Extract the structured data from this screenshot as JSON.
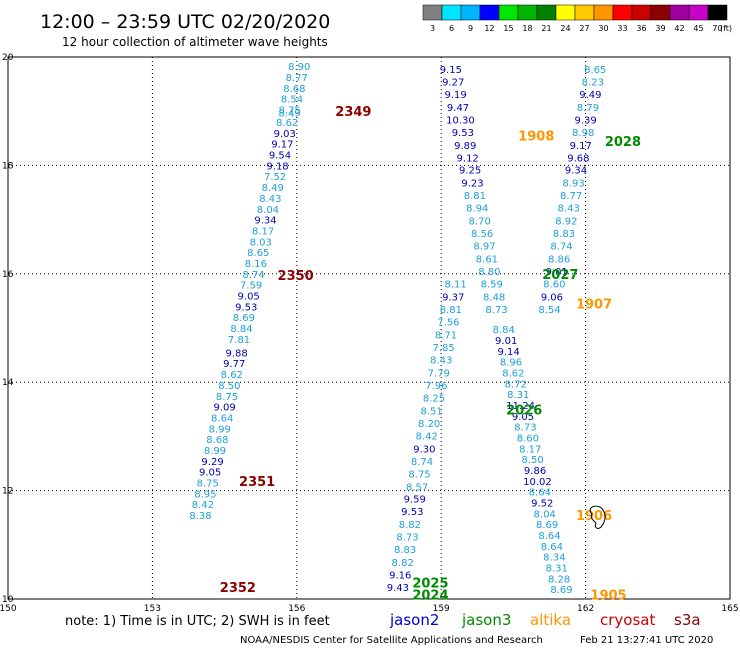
{
  "title": "12:00 – 23:59 UTC 02/20/2020",
  "subtitle": "12 hour collection of altimeter wave heights",
  "colorbar": {
    "unit": "(ft)",
    "labels": [
      "3",
      "6",
      "9",
      "12",
      "15",
      "18",
      "21",
      "24",
      "27",
      "30",
      "33",
      "36",
      "39",
      "42",
      "45",
      "70"
    ],
    "colors": [
      "#808080",
      "#00e5ff",
      "#00b4ff",
      "#0000ff",
      "#00e600",
      "#00b400",
      "#008200",
      "#ffff00",
      "#ffc800",
      "#ff9600",
      "#ff0000",
      "#c80000",
      "#8c0000",
      "#a000a0",
      "#c800c8",
      "#000000"
    ]
  },
  "footer": {
    "note": "note: 1) Time is in UTC; 2) SWH is in feet",
    "credit": "NOAA/NESDIS Center for Satellite Applications and Research",
    "timestamp": "Feb 21 13:27:41 UTC 2020"
  },
  "legend": [
    {
      "name": "jason2",
      "color": "#0000c8"
    },
    {
      "name": "jason3",
      "color": "#008c00"
    },
    {
      "name": "altika",
      "color": "#ff9600"
    },
    {
      "name": "cryosat",
      "color": "#c80000"
    },
    {
      "name": "s3a",
      "color": "#8c0000"
    }
  ],
  "chart_data": {
    "type": "scatter",
    "title": "12:00 – 23:59 UTC 02/20/2020",
    "subtitle": "12 hour collection of altimeter wave heights",
    "xlim": [
      150,
      165
    ],
    "ylim": [
      10,
      20
    ],
    "x_ticks": [
      "150",
      "153",
      "156",
      "159",
      "162",
      "165"
    ],
    "y_ticks": [
      "10",
      "12",
      "14",
      "16",
      "18",
      "20"
    ],
    "grid": true,
    "colors": {
      "light": "#1ea0dc",
      "dark": "#0000b4"
    },
    "points": [
      {
        "x": 156.05,
        "y": 19.83,
        "v": "8.90",
        "c": "light"
      },
      {
        "x": 156.0,
        "y": 19.63,
        "v": "8.77",
        "c": "light"
      },
      {
        "x": 155.95,
        "y": 19.43,
        "v": "8.68",
        "c": "light"
      },
      {
        "x": 155.9,
        "y": 19.23,
        "v": "8.54",
        "c": "light"
      },
      {
        "x": 155.85,
        "y": 19.03,
        "v": "8.75",
        "c": "light"
      },
      {
        "x": 155.85,
        "y": 18.98,
        "v": "8.49",
        "c": "light"
      },
      {
        "x": 155.8,
        "y": 18.8,
        "v": "8.62",
        "c": "light"
      },
      {
        "x": 155.75,
        "y": 18.6,
        "v": "9.03",
        "c": "dark"
      },
      {
        "x": 155.7,
        "y": 18.4,
        "v": "9.17",
        "c": "dark"
      },
      {
        "x": 155.65,
        "y": 18.2,
        "v": "9.54",
        "c": "dark"
      },
      {
        "x": 155.6,
        "y": 18.0,
        "v": "9.18",
        "c": "dark"
      },
      {
        "x": 155.55,
        "y": 17.8,
        "v": "7.52",
        "c": "light"
      },
      {
        "x": 155.5,
        "y": 17.6,
        "v": "8.49",
        "c": "light"
      },
      {
        "x": 155.45,
        "y": 17.4,
        "v": "8.43",
        "c": "light"
      },
      {
        "x": 155.4,
        "y": 17.2,
        "v": "8.04",
        "c": "light"
      },
      {
        "x": 155.35,
        "y": 17.0,
        "v": "9.34",
        "c": "dark"
      },
      {
        "x": 155.3,
        "y": 16.8,
        "v": "8.17",
        "c": "light"
      },
      {
        "x": 155.25,
        "y": 16.6,
        "v": "8.03",
        "c": "light"
      },
      {
        "x": 155.2,
        "y": 16.4,
        "v": "8.65",
        "c": "light"
      },
      {
        "x": 155.15,
        "y": 16.2,
        "v": "8.16",
        "c": "light"
      },
      {
        "x": 155.1,
        "y": 16.0,
        "v": "8.74",
        "c": "light"
      },
      {
        "x": 155.05,
        "y": 15.8,
        "v": "7.59",
        "c": "light"
      },
      {
        "x": 155.0,
        "y": 15.6,
        "v": "9.05",
        "c": "dark"
      },
      {
        "x": 154.95,
        "y": 15.4,
        "v": "9.53",
        "c": "dark"
      },
      {
        "x": 154.9,
        "y": 15.2,
        "v": "8.69",
        "c": "light"
      },
      {
        "x": 154.85,
        "y": 15.0,
        "v": "8.84",
        "c": "light"
      },
      {
        "x": 154.8,
        "y": 14.8,
        "v": "7.81",
        "c": "light"
      },
      {
        "x": 154.75,
        "y": 14.55,
        "v": "9.88",
        "c": "dark"
      },
      {
        "x": 154.7,
        "y": 14.35,
        "v": "9.77",
        "c": "dark"
      },
      {
        "x": 154.65,
        "y": 14.15,
        "v": "8.62",
        "c": "light"
      },
      {
        "x": 154.6,
        "y": 13.95,
        "v": "8.50",
        "c": "light"
      },
      {
        "x": 154.55,
        "y": 13.75,
        "v": "8.75",
        "c": "light"
      },
      {
        "x": 154.5,
        "y": 13.55,
        "v": "9.09",
        "c": "dark"
      },
      {
        "x": 154.45,
        "y": 13.35,
        "v": "8.64",
        "c": "light"
      },
      {
        "x": 154.4,
        "y": 13.15,
        "v": "8.99",
        "c": "light"
      },
      {
        "x": 154.35,
        "y": 12.95,
        "v": "8.68",
        "c": "light"
      },
      {
        "x": 154.3,
        "y": 12.75,
        "v": "8.99",
        "c": "light"
      },
      {
        "x": 154.25,
        "y": 12.55,
        "v": "9.29",
        "c": "dark"
      },
      {
        "x": 154.2,
        "y": 12.35,
        "v": "9.05",
        "c": "dark"
      },
      {
        "x": 154.15,
        "y": 12.15,
        "v": "8.75",
        "c": "light"
      },
      {
        "x": 154.1,
        "y": 11.95,
        "v": "8.95",
        "c": "light"
      },
      {
        "x": 154.05,
        "y": 11.75,
        "v": "8.42",
        "c": "light"
      },
      {
        "x": 154.0,
        "y": 11.55,
        "v": "8.38",
        "c": "light"
      },
      {
        "x": 159.2,
        "y": 19.78,
        "v": "9.15",
        "c": "dark"
      },
      {
        "x": 159.25,
        "y": 19.55,
        "v": "9.27",
        "c": "dark"
      },
      {
        "x": 159.3,
        "y": 19.32,
        "v": "9.19",
        "c": "dark"
      },
      {
        "x": 159.35,
        "y": 19.08,
        "v": "9.47",
        "c": "dark"
      },
      {
        "x": 159.4,
        "y": 18.85,
        "v": "10.30",
        "c": "dark"
      },
      {
        "x": 159.45,
        "y": 18.62,
        "v": "9.53",
        "c": "dark"
      },
      {
        "x": 159.5,
        "y": 18.38,
        "v": "9.89",
        "c": "dark"
      },
      {
        "x": 159.55,
        "y": 18.15,
        "v": "9.12",
        "c": "dark"
      },
      {
        "x": 159.6,
        "y": 17.92,
        "v": "9.25",
        "c": "dark"
      },
      {
        "x": 159.65,
        "y": 17.68,
        "v": "9.23",
        "c": "dark"
      },
      {
        "x": 159.7,
        "y": 17.45,
        "v": "8.81",
        "c": "light"
      },
      {
        "x": 159.75,
        "y": 17.22,
        "v": "8.94",
        "c": "light"
      },
      {
        "x": 159.8,
        "y": 16.98,
        "v": "8.70",
        "c": "light"
      },
      {
        "x": 159.85,
        "y": 16.75,
        "v": "8.56",
        "c": "light"
      },
      {
        "x": 159.9,
        "y": 16.52,
        "v": "8.97",
        "c": "light"
      },
      {
        "x": 159.95,
        "y": 16.28,
        "v": "8.61",
        "c": "light"
      },
      {
        "x": 160.0,
        "y": 16.05,
        "v": "8.80",
        "c": "light"
      },
      {
        "x": 160.05,
        "y": 15.82,
        "v": "8.59",
        "c": "light"
      },
      {
        "x": 160.1,
        "y": 15.58,
        "v": "8.48",
        "c": "light"
      },
      {
        "x": 160.15,
        "y": 15.35,
        "v": "8.73",
        "c": "light"
      },
      {
        "x": 158.1,
        "y": 10.22,
        "v": "9.43",
        "c": "dark"
      },
      {
        "x": 158.15,
        "y": 10.45,
        "v": "9.16",
        "c": "dark"
      },
      {
        "x": 158.2,
        "y": 10.68,
        "v": "8.82",
        "c": "light"
      },
      {
        "x": 158.25,
        "y": 10.92,
        "v": "8.83",
        "c": "light"
      },
      {
        "x": 158.3,
        "y": 11.15,
        "v": "8.73",
        "c": "light"
      },
      {
        "x": 158.35,
        "y": 11.38,
        "v": "8.82",
        "c": "light"
      },
      {
        "x": 158.4,
        "y": 11.62,
        "v": "9.53",
        "c": "dark"
      },
      {
        "x": 158.45,
        "y": 11.85,
        "v": "9.59",
        "c": "dark"
      },
      {
        "x": 158.5,
        "y": 12.08,
        "v": "8.57",
        "c": "light"
      },
      {
        "x": 158.55,
        "y": 12.32,
        "v": "8.75",
        "c": "light"
      },
      {
        "x": 158.6,
        "y": 12.55,
        "v": "8.74",
        "c": "light"
      },
      {
        "x": 158.65,
        "y": 12.78,
        "v": "9.30",
        "c": "dark"
      },
      {
        "x": 158.7,
        "y": 13.02,
        "v": "8.42",
        "c": "light"
      },
      {
        "x": 158.75,
        "y": 13.25,
        "v": "8.20",
        "c": "light"
      },
      {
        "x": 158.8,
        "y": 13.48,
        "v": "8.51",
        "c": "light"
      },
      {
        "x": 158.85,
        "y": 13.72,
        "v": "8.25",
        "c": "light"
      },
      {
        "x": 158.9,
        "y": 13.95,
        "v": "7.96",
        "c": "light"
      },
      {
        "x": 158.95,
        "y": 14.18,
        "v": "7.79",
        "c": "light"
      },
      {
        "x": 159.0,
        "y": 14.42,
        "v": "8.43",
        "c": "light"
      },
      {
        "x": 159.05,
        "y": 14.65,
        "v": "7.85",
        "c": "light"
      },
      {
        "x": 159.1,
        "y": 14.88,
        "v": "8.71",
        "c": "light"
      },
      {
        "x": 159.15,
        "y": 15.12,
        "v": "7.56",
        "c": "light"
      },
      {
        "x": 159.2,
        "y": 15.35,
        "v": "8.81",
        "c": "light"
      },
      {
        "x": 159.25,
        "y": 15.58,
        "v": "9.37",
        "c": "dark"
      },
      {
        "x": 159.3,
        "y": 15.82,
        "v": "8.11",
        "c": "light"
      },
      {
        "x": 162.2,
        "y": 19.78,
        "v": "8.65",
        "c": "light"
      },
      {
        "x": 162.15,
        "y": 19.55,
        "v": "8.23",
        "c": "light"
      },
      {
        "x": 162.1,
        "y": 19.32,
        "v": "9.49",
        "c": "dark"
      },
      {
        "x": 162.05,
        "y": 19.08,
        "v": "8.79",
        "c": "light"
      },
      {
        "x": 162.0,
        "y": 18.85,
        "v": "9.39",
        "c": "dark"
      },
      {
        "x": 161.95,
        "y": 18.62,
        "v": "8.98",
        "c": "light"
      },
      {
        "x": 161.9,
        "y": 18.38,
        "v": "9.17",
        "c": "dark"
      },
      {
        "x": 161.85,
        "y": 18.15,
        "v": "9.68",
        "c": "dark"
      },
      {
        "x": 161.8,
        "y": 17.92,
        "v": "9.34",
        "c": "dark"
      },
      {
        "x": 161.75,
        "y": 17.68,
        "v": "8.93",
        "c": "light"
      },
      {
        "x": 161.7,
        "y": 17.45,
        "v": "8.77",
        "c": "light"
      },
      {
        "x": 161.65,
        "y": 17.22,
        "v": "8.43",
        "c": "light"
      },
      {
        "x": 161.6,
        "y": 16.98,
        "v": "8.92",
        "c": "light"
      },
      {
        "x": 161.55,
        "y": 16.75,
        "v": "8.83",
        "c": "light"
      },
      {
        "x": 161.5,
        "y": 16.52,
        "v": "8.74",
        "c": "light"
      },
      {
        "x": 161.45,
        "y": 16.28,
        "v": "8.86",
        "c": "light"
      },
      {
        "x": 161.4,
        "y": 16.05,
        "v": "9.01",
        "c": "dark"
      },
      {
        "x": 161.35,
        "y": 15.82,
        "v": "8.60",
        "c": "light"
      },
      {
        "x": 161.3,
        "y": 15.58,
        "v": "9.06",
        "c": "dark"
      },
      {
        "x": 161.25,
        "y": 15.35,
        "v": "8.54",
        "c": "light"
      },
      {
        "x": 160.3,
        "y": 14.98,
        "v": "8.84",
        "c": "light"
      },
      {
        "x": 160.35,
        "y": 14.78,
        "v": "9.01",
        "c": "dark"
      },
      {
        "x": 160.4,
        "y": 14.58,
        "v": "9.14",
        "c": "dark"
      },
      {
        "x": 160.45,
        "y": 14.38,
        "v": "8.96",
        "c": "light"
      },
      {
        "x": 160.5,
        "y": 14.18,
        "v": "8.62",
        "c": "light"
      },
      {
        "x": 160.55,
        "y": 13.98,
        "v": "8.72",
        "c": "light"
      },
      {
        "x": 160.6,
        "y": 13.78,
        "v": "8.31",
        "c": "light"
      },
      {
        "x": 160.65,
        "y": 13.58,
        "v": "11.24",
        "c": "dark"
      },
      {
        "x": 160.7,
        "y": 13.38,
        "v": "9.05",
        "c": "dark"
      },
      {
        "x": 160.75,
        "y": 13.18,
        "v": "8.73",
        "c": "light"
      },
      {
        "x": 160.8,
        "y": 12.98,
        "v": "8.60",
        "c": "light"
      },
      {
        "x": 160.85,
        "y": 12.78,
        "v": "8.17",
        "c": "light"
      },
      {
        "x": 160.9,
        "y": 12.58,
        "v": "8.50",
        "c": "light"
      },
      {
        "x": 160.95,
        "y": 12.38,
        "v": "9.86",
        "c": "dark"
      },
      {
        "x": 161.0,
        "y": 12.18,
        "v": "10.02",
        "c": "dark"
      },
      {
        "x": 161.05,
        "y": 11.98,
        "v": "8.64",
        "c": "light"
      },
      {
        "x": 161.1,
        "y": 11.78,
        "v": "9.52",
        "c": "dark"
      },
      {
        "x": 161.15,
        "y": 11.58,
        "v": "8.04",
        "c": "light"
      },
      {
        "x": 161.2,
        "y": 11.38,
        "v": "8.69",
        "c": "light"
      },
      {
        "x": 161.25,
        "y": 11.18,
        "v": "8.64",
        "c": "light"
      },
      {
        "x": 161.3,
        "y": 10.98,
        "v": "8.64",
        "c": "light"
      },
      {
        "x": 161.35,
        "y": 10.78,
        "v": "8.34",
        "c": "light"
      },
      {
        "x": 161.4,
        "y": 10.58,
        "v": "8.31",
        "c": "light"
      },
      {
        "x": 161.45,
        "y": 10.38,
        "v": "8.28",
        "c": "light"
      },
      {
        "x": 161.5,
        "y": 10.18,
        "v": "8.69",
        "c": "light"
      }
    ],
    "annotations": [
      {
        "x": 156.8,
        "y": 19.0,
        "text": "2349",
        "color": "#8c0000"
      },
      {
        "x": 155.6,
        "y": 15.98,
        "text": "2350",
        "color": "#8c0000"
      },
      {
        "x": 154.8,
        "y": 12.18,
        "text": "2351",
        "color": "#8c0000"
      },
      {
        "x": 154.4,
        "y": 10.22,
        "text": "2352",
        "color": "#8c0000"
      },
      {
        "x": 160.6,
        "y": 18.55,
        "text": "1908",
        "color": "#ff9600"
      },
      {
        "x": 162.4,
        "y": 18.45,
        "text": "2028",
        "color": "#008c00"
      },
      {
        "x": 161.1,
        "y": 16.0,
        "text": "2027",
        "color": "#008c00"
      },
      {
        "x": 161.8,
        "y": 15.45,
        "text": "1907",
        "color": "#ff9600"
      },
      {
        "x": 160.35,
        "y": 13.5,
        "text": "2026",
        "color": "#008c00"
      },
      {
        "x": 161.8,
        "y": 11.55,
        "text": "1906",
        "color": "#ff9600"
      },
      {
        "x": 158.4,
        "y": 10.3,
        "text": "2025",
        "color": "#008c00"
      },
      {
        "x": 158.4,
        "y": 10.08,
        "text": "2024",
        "color": "#008c00"
      },
      {
        "x": 162.1,
        "y": 10.08,
        "text": "1905",
        "color": "#ff9600"
      }
    ]
  }
}
